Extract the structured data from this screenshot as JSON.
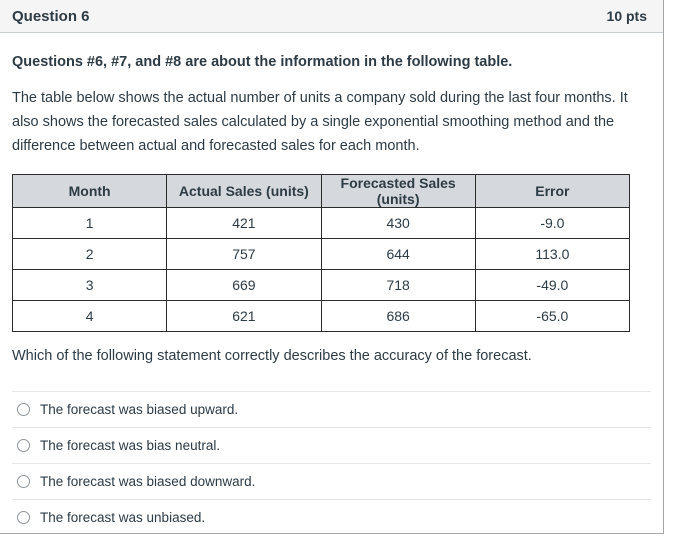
{
  "header": {
    "title": "Question 6",
    "points": "10 pts"
  },
  "body": {
    "intro_bold": "Questions #6, #7, and #8 are about the information in the following table.",
    "intro_text": "The table below shows the actual number of units a company sold during the last four months. It also shows the forecasted sales calculated by a single exponential smoothing method and the difference between actual and forecasted sales for each month.",
    "question": "Which of the following statement correctly describes the accuracy of the forecast."
  },
  "table": {
    "headers": [
      "Month",
      "Actual Sales (units)",
      "Forecasted Sales (units)",
      "Error"
    ],
    "rows": [
      [
        "1",
        "421",
        "430",
        "-9.0"
      ],
      [
        "2",
        "757",
        "644",
        "113.0"
      ],
      [
        "3",
        "669",
        "718",
        "-49.0"
      ],
      [
        "4",
        "621",
        "686",
        "-65.0"
      ]
    ]
  },
  "options": [
    "The forecast was biased upward.",
    "The forecast was bias neutral.",
    "The forecast was biased downward.",
    "The forecast was unbiased."
  ],
  "colors": {
    "text": "#2d3b45",
    "header_bg": "#f5f5f5",
    "header_border": "#c7cdd1",
    "panel_border": "#a5a5a5",
    "table_header_bg": "#d5d9dd",
    "table_border": "#2b2b2b",
    "answer_divider": "#e6e6e6",
    "radio_border": "#8e959c"
  }
}
